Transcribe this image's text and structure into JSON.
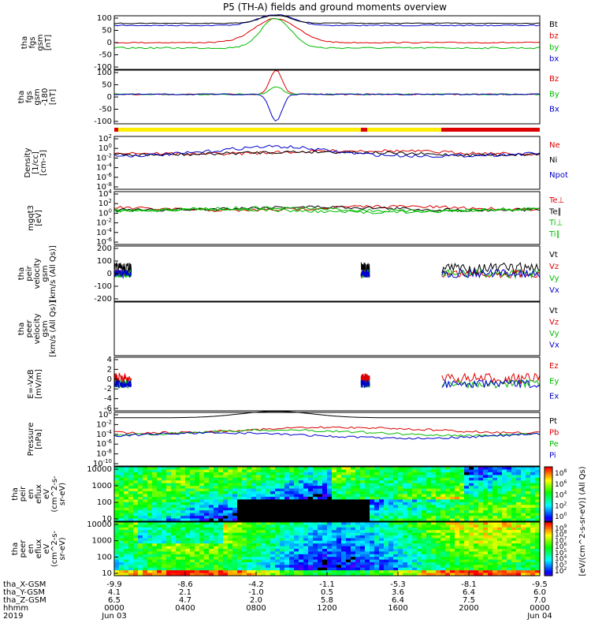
{
  "title": "P5 (TH-A) fields and ground moments overview",
  "x_ticks": [
    {
      "time": "0000",
      "date": "Jun 03",
      "x_gsm": "-9.9",
      "y_gsm": "4.1",
      "z_gsm": "6.5"
    },
    {
      "time": "0400",
      "date": "",
      "x_gsm": "-8.6",
      "y_gsm": "2.1",
      "z_gsm": "4.7"
    },
    {
      "time": "0800",
      "date": "",
      "x_gsm": "-4.2",
      "y_gsm": "-1.0",
      "z_gsm": "2.0"
    },
    {
      "time": "1200",
      "date": "",
      "x_gsm": "-1.1",
      "y_gsm": "0.5",
      "z_gsm": "5.8"
    },
    {
      "time": "1600",
      "date": "",
      "x_gsm": "-5.3",
      "y_gsm": "3.6",
      "z_gsm": "6.4"
    },
    {
      "time": "2000",
      "date": "",
      "x_gsm": "-8.1",
      "y_gsm": "6.4",
      "z_gsm": "7.5"
    },
    {
      "time": "0000",
      "date": "Jun 04",
      "x_gsm": "-9.5",
      "y_gsm": "6.0",
      "z_gsm": "7.0"
    }
  ],
  "x_row_labels": [
    "tha_X-GSM",
    "tha_Y-GSM",
    "tha_Z-GSM",
    "hhmm",
    "2019"
  ],
  "colorbar_label": "[eV/(cm^2-s-sr-eV)] (All Qs)",
  "chart_data": [
    {
      "type": "line",
      "id": "fgs",
      "ylabel": [
        "tha",
        "fgs",
        "gsm",
        "[nT]"
      ],
      "ylim": [
        -100,
        100
      ],
      "yticks": [
        "100",
        "50",
        "0",
        "-50",
        "-100"
      ],
      "series": [
        {
          "name": "Bt",
          "color": "#000000"
        },
        {
          "name": "bz",
          "color": "#dd0000"
        },
        {
          "name": "by",
          "color": "#00bb00"
        },
        {
          "name": "bx",
          "color": "#0000cc"
        }
      ]
    },
    {
      "type": "line",
      "id": "fgs2",
      "ylabel": [
        "tha",
        "fgs",
        "gsm",
        "-180",
        "[nT]"
      ],
      "ylim": [
        -120,
        100
      ],
      "yticks": [
        "100",
        "50",
        "0",
        "-50",
        "-100"
      ],
      "series": [
        {
          "name": "Bz",
          "color": "#dd0000"
        },
        {
          "name": "By",
          "color": "#00bb00"
        },
        {
          "name": "Bx",
          "color": "#0000cc"
        }
      ]
    },
    {
      "type": "line",
      "id": "density",
      "ylabel": [
        "Density",
        "[1/cc]",
        "[cm-3]"
      ],
      "scale": "log",
      "yticks": [
        "10^2",
        "10^0",
        "10^-2",
        "10^-4",
        "10^-6",
        "10^-8"
      ],
      "series": [
        {
          "name": "Ne",
          "color": "#dd0000"
        },
        {
          "name": "Ni",
          "color": "#000000"
        },
        {
          "name": "Npot",
          "color": "#0000cc"
        }
      ]
    },
    {
      "type": "line",
      "id": "temp",
      "ylabel": [
        "mgqt3",
        "[eV]"
      ],
      "scale": "log",
      "yticks": [
        "10^4",
        "10^2",
        "10^0",
        "10^-2",
        "10^-4",
        "10^-6"
      ],
      "series": [
        {
          "name": "Te⊥",
          "color": "#dd0000"
        },
        {
          "name": "Te∥",
          "color": "#000000"
        },
        {
          "name": "Ti⊥",
          "color": "#00bb00"
        },
        {
          "name": "Ti∥",
          "color": "#00bb00"
        }
      ]
    },
    {
      "type": "line",
      "id": "peirvel",
      "ylabel": [
        "tha",
        "peir",
        "velocity",
        "gsm",
        "[km/s (All Qs)]"
      ],
      "ylim": [
        -200,
        200
      ],
      "yticks": [
        "200",
        "100",
        "0",
        "-100",
        "-200"
      ],
      "series": [
        {
          "name": "Vt",
          "color": "#000000"
        },
        {
          "name": "Vz",
          "color": "#dd0000"
        },
        {
          "name": "Vy",
          "color": "#00bb00"
        },
        {
          "name": "Vx",
          "color": "#0000cc"
        }
      ]
    },
    {
      "type": "line",
      "id": "peervel",
      "ylabel": [
        "tha",
        "peer",
        "velocity",
        "gsm",
        "[km/s (All Qs)]"
      ],
      "yticks": [],
      "series": [
        {
          "name": "Vt",
          "color": "#000000"
        },
        {
          "name": "Vz",
          "color": "#dd0000"
        },
        {
          "name": "Vy",
          "color": "#00bb00"
        },
        {
          "name": "Vx",
          "color": "#0000cc"
        }
      ]
    },
    {
      "type": "line",
      "id": "efield",
      "ylabel": [
        "E=-VxB",
        "[mV/m]"
      ],
      "ylim": [
        -6,
        4
      ],
      "yticks": [
        "4",
        "2",
        "0",
        "-2",
        "-4",
        "-6"
      ],
      "series": [
        {
          "name": "Ez",
          "color": "#dd0000"
        },
        {
          "name": "Ey",
          "color": "#00bb00"
        },
        {
          "name": "Ex",
          "color": "#0000cc"
        }
      ]
    },
    {
      "type": "line",
      "id": "pressure",
      "ylabel": [
        "Pressure",
        "[nPa]"
      ],
      "scale": "log",
      "yticks": [
        "10^0",
        "10^-2",
        "10^-4",
        "10^-6",
        "10^-8",
        "10^-10"
      ],
      "series": [
        {
          "name": "Pt",
          "color": "#000000"
        },
        {
          "name": "Pb",
          "color": "#dd0000"
        },
        {
          "name": "Pe",
          "color": "#00bb00"
        },
        {
          "name": "Pi",
          "color": "#0000cc"
        }
      ]
    },
    {
      "type": "heatmap",
      "id": "peir_spec",
      "ylabel": [
        "tha",
        "peir",
        "en",
        "eflux",
        "eV",
        "(cm^2-s-",
        "sr-eV)"
      ],
      "yticks": [
        "10000",
        "1000",
        "100",
        "10"
      ],
      "cticks": [
        "10^8",
        "10^6",
        "10^4",
        "10^2",
        "10^0"
      ]
    },
    {
      "type": "heatmap",
      "id": "peer_spec",
      "ylabel": [
        "tha",
        "peer",
        "en",
        "eflux",
        "eV",
        "(cm^2-s-",
        "sr-eV)"
      ],
      "yticks": [
        "10000",
        "1000",
        "100",
        "10"
      ],
      "cticks": [
        "10^9",
        "10^8",
        "10^7",
        "10^6",
        "10^5",
        "10^4",
        "10^3",
        "10^2"
      ]
    }
  ]
}
